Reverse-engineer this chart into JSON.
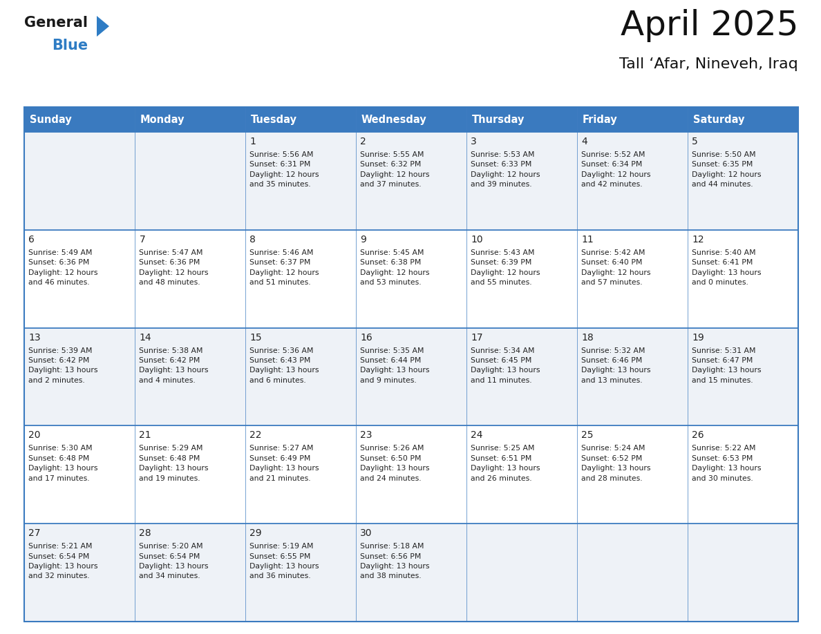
{
  "title": "April 2025",
  "subtitle": "Tall ‘Afar, Nineveh, Iraq",
  "days_of_week": [
    "Sunday",
    "Monday",
    "Tuesday",
    "Wednesday",
    "Thursday",
    "Friday",
    "Saturday"
  ],
  "header_bg": "#3a7abf",
  "header_text": "#ffffff",
  "row_bg_odd": "#eef2f7",
  "row_bg_even": "#ffffff",
  "border_color": "#3a7abf",
  "text_color": "#222222",
  "cell_data": [
    [
      "",
      "",
      "1\nSunrise: 5:56 AM\nSunset: 6:31 PM\nDaylight: 12 hours\nand 35 minutes.",
      "2\nSunrise: 5:55 AM\nSunset: 6:32 PM\nDaylight: 12 hours\nand 37 minutes.",
      "3\nSunrise: 5:53 AM\nSunset: 6:33 PM\nDaylight: 12 hours\nand 39 minutes.",
      "4\nSunrise: 5:52 AM\nSunset: 6:34 PM\nDaylight: 12 hours\nand 42 minutes.",
      "5\nSunrise: 5:50 AM\nSunset: 6:35 PM\nDaylight: 12 hours\nand 44 minutes."
    ],
    [
      "6\nSunrise: 5:49 AM\nSunset: 6:36 PM\nDaylight: 12 hours\nand 46 minutes.",
      "7\nSunrise: 5:47 AM\nSunset: 6:36 PM\nDaylight: 12 hours\nand 48 minutes.",
      "8\nSunrise: 5:46 AM\nSunset: 6:37 PM\nDaylight: 12 hours\nand 51 minutes.",
      "9\nSunrise: 5:45 AM\nSunset: 6:38 PM\nDaylight: 12 hours\nand 53 minutes.",
      "10\nSunrise: 5:43 AM\nSunset: 6:39 PM\nDaylight: 12 hours\nand 55 minutes.",
      "11\nSunrise: 5:42 AM\nSunset: 6:40 PM\nDaylight: 12 hours\nand 57 minutes.",
      "12\nSunrise: 5:40 AM\nSunset: 6:41 PM\nDaylight: 13 hours\nand 0 minutes."
    ],
    [
      "13\nSunrise: 5:39 AM\nSunset: 6:42 PM\nDaylight: 13 hours\nand 2 minutes.",
      "14\nSunrise: 5:38 AM\nSunset: 6:42 PM\nDaylight: 13 hours\nand 4 minutes.",
      "15\nSunrise: 5:36 AM\nSunset: 6:43 PM\nDaylight: 13 hours\nand 6 minutes.",
      "16\nSunrise: 5:35 AM\nSunset: 6:44 PM\nDaylight: 13 hours\nand 9 minutes.",
      "17\nSunrise: 5:34 AM\nSunset: 6:45 PM\nDaylight: 13 hours\nand 11 minutes.",
      "18\nSunrise: 5:32 AM\nSunset: 6:46 PM\nDaylight: 13 hours\nand 13 minutes.",
      "19\nSunrise: 5:31 AM\nSunset: 6:47 PM\nDaylight: 13 hours\nand 15 minutes."
    ],
    [
      "20\nSunrise: 5:30 AM\nSunset: 6:48 PM\nDaylight: 13 hours\nand 17 minutes.",
      "21\nSunrise: 5:29 AM\nSunset: 6:48 PM\nDaylight: 13 hours\nand 19 minutes.",
      "22\nSunrise: 5:27 AM\nSunset: 6:49 PM\nDaylight: 13 hours\nand 21 minutes.",
      "23\nSunrise: 5:26 AM\nSunset: 6:50 PM\nDaylight: 13 hours\nand 24 minutes.",
      "24\nSunrise: 5:25 AM\nSunset: 6:51 PM\nDaylight: 13 hours\nand 26 minutes.",
      "25\nSunrise: 5:24 AM\nSunset: 6:52 PM\nDaylight: 13 hours\nand 28 minutes.",
      "26\nSunrise: 5:22 AM\nSunset: 6:53 PM\nDaylight: 13 hours\nand 30 minutes."
    ],
    [
      "27\nSunrise: 5:21 AM\nSunset: 6:54 PM\nDaylight: 13 hours\nand 32 minutes.",
      "28\nSunrise: 5:20 AM\nSunset: 6:54 PM\nDaylight: 13 hours\nand 34 minutes.",
      "29\nSunrise: 5:19 AM\nSunset: 6:55 PM\nDaylight: 13 hours\nand 36 minutes.",
      "30\nSunrise: 5:18 AM\nSunset: 6:56 PM\nDaylight: 13 hours\nand 38 minutes.",
      "",
      "",
      ""
    ]
  ],
  "logo_general_color": "#1a1a1a",
  "logo_blue_color": "#2e7cc4",
  "logo_triangle_color": "#2e7cc4",
  "fig_width": 11.88,
  "fig_height": 9.18,
  "dpi": 100
}
